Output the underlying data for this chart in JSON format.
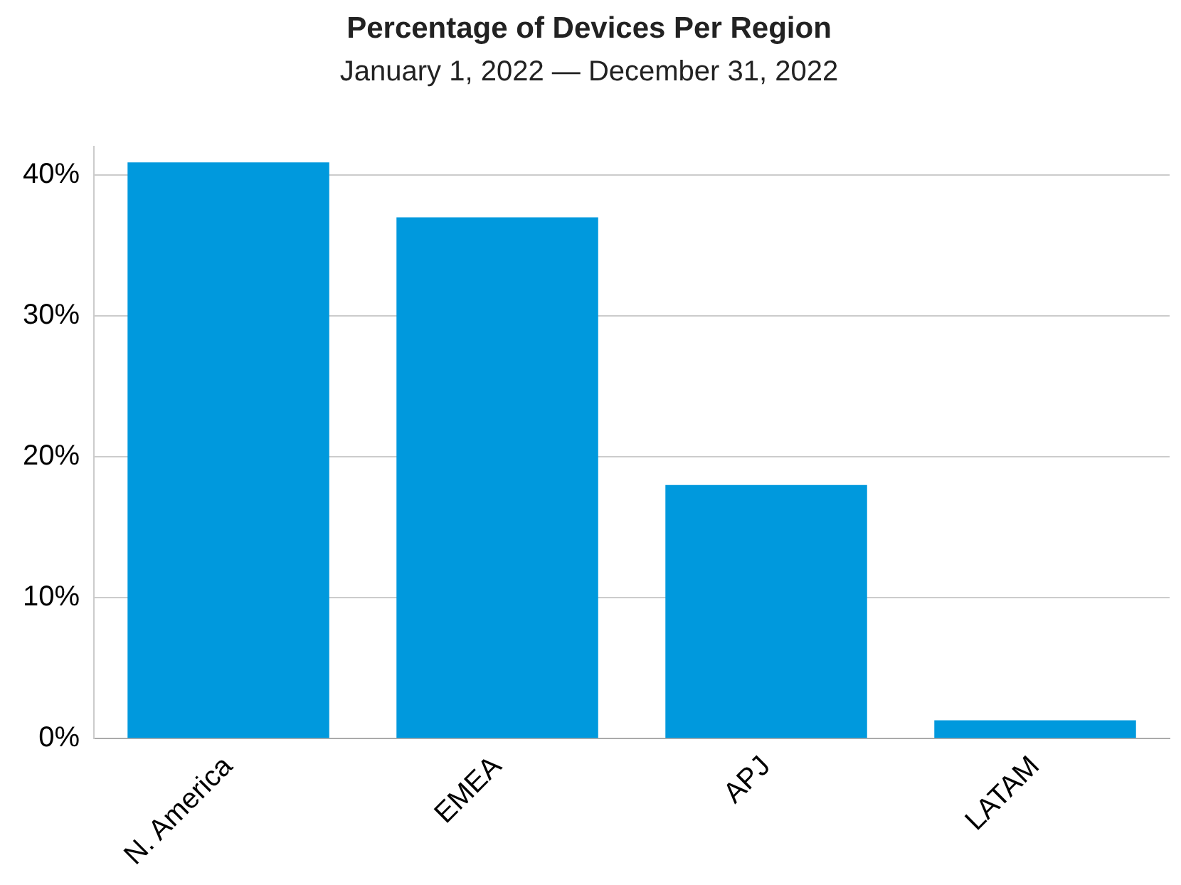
{
  "chart_data": {
    "type": "bar",
    "title": "Percentage of Devices Per Region",
    "subtitle": "January 1, 2022 — December 31, 2022",
    "categories": [
      "N. America",
      "EMEA",
      "APJ",
      "LATAM"
    ],
    "values": [
      40.9,
      37.0,
      18.0,
      1.3
    ],
    "color": "#0099dd",
    "ylim": [
      0,
      42
    ],
    "yticks": [
      {
        "value": 0,
        "label": "0%"
      },
      {
        "value": 10,
        "label": "10%"
      },
      {
        "value": 20,
        "label": "20%"
      },
      {
        "value": 30,
        "label": "30%"
      },
      {
        "value": 40,
        "label": "40%"
      }
    ],
    "grid": "y",
    "legend": false
  }
}
